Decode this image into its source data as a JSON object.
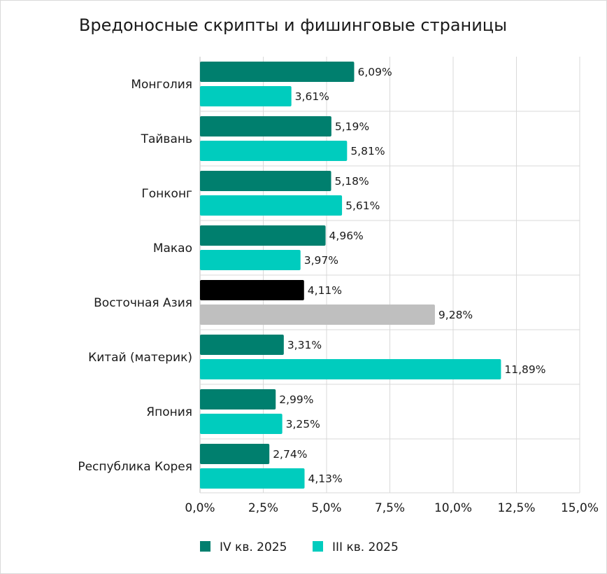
{
  "chart_data": {
    "type": "bar",
    "orientation": "horizontal",
    "title": "Вредоносные скрипты и фишинговые страницы",
    "categories": [
      "Монголия",
      "Тайвань",
      "Гонконг",
      "Макао",
      "Восточная Азия",
      "Китай (материк)",
      "Япония",
      "Республика Корея"
    ],
    "series": [
      {
        "name": "IV кв. 2025",
        "color": "#007f6e",
        "values": [
          6.09,
          5.19,
          5.18,
          4.96,
          4.11,
          3.31,
          2.99,
          2.74
        ],
        "labels": [
          "6,09%",
          "5,19%",
          "5,18%",
          "4,96%",
          "4,11%",
          "3,31%",
          "2,99%",
          "2,74%"
        ]
      },
      {
        "name": "III кв. 2025",
        "color": "#00ccbe",
        "values": [
          3.61,
          5.81,
          5.61,
          3.97,
          9.28,
          11.89,
          3.25,
          4.13
        ],
        "labels": [
          "3,61%",
          "5,81%",
          "5,61%",
          "3,97%",
          "9,28%",
          "11,89%",
          "3,25%",
          "4,13%"
        ]
      }
    ],
    "highlight": {
      "category": "Восточная Азия",
      "colors": [
        "#000000",
        "#bfbfbf"
      ]
    },
    "xlim": [
      0,
      15
    ],
    "xticks": [
      0,
      2.5,
      5,
      7.5,
      10,
      12.5,
      15
    ],
    "xtick_labels": [
      "0,0%",
      "2,5%",
      "5,0%",
      "7,5%",
      "10,0%",
      "12,5%",
      "15,0%"
    ],
    "grid": true,
    "legend": "bottom-center",
    "xlabel": "",
    "ylabel": ""
  }
}
